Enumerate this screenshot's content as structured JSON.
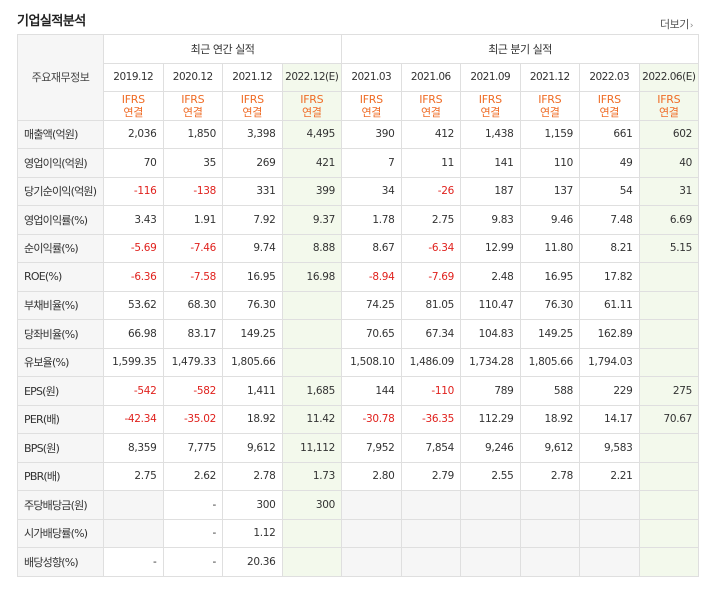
{
  "section_title": "기업실적분석",
  "more_link": "더보기",
  "more_arrow": "›",
  "corner_label": "주요재무정보",
  "group_annual": "최근 연간 실적",
  "group_quarter": "최근 분기 실적",
  "columns": [
    {
      "period": "2019.12",
      "ifrs1": "IFRS",
      "ifrs2": "연결",
      "estimate": false
    },
    {
      "period": "2020.12",
      "ifrs1": "IFRS",
      "ifrs2": "연결",
      "estimate": false
    },
    {
      "period": "2021.12",
      "ifrs1": "IFRS",
      "ifrs2": "연결",
      "estimate": false
    },
    {
      "period": "2022.12(E)",
      "ifrs1": "IFRS",
      "ifrs2": "연결",
      "estimate": true
    },
    {
      "period": "2021.03",
      "ifrs1": "IFRS",
      "ifrs2": "연결",
      "estimate": false
    },
    {
      "period": "2021.06",
      "ifrs1": "IFRS",
      "ifrs2": "연결",
      "estimate": false
    },
    {
      "period": "2021.09",
      "ifrs1": "IFRS",
      "ifrs2": "연결",
      "estimate": false
    },
    {
      "period": "2021.12",
      "ifrs1": "IFRS",
      "ifrs2": "연결",
      "estimate": false
    },
    {
      "period": "2022.03",
      "ifrs1": "IFRS",
      "ifrs2": "연결",
      "estimate": false
    },
    {
      "period": "2022.06(E)",
      "ifrs1": "IFRS",
      "ifrs2": "연결",
      "estimate": true
    }
  ],
  "rows": [
    {
      "label": "매출액(억원)",
      "values": [
        "2,036",
        "1,850",
        "3,398",
        "4,495",
        "390",
        "412",
        "1,438",
        "1,159",
        "661",
        "602"
      ]
    },
    {
      "label": "영업이익(억원)",
      "values": [
        "70",
        "35",
        "269",
        "421",
        "7",
        "11",
        "141",
        "110",
        "49",
        "40"
      ]
    },
    {
      "label": "당기순이익(억원)",
      "values": [
        "-116",
        "-138",
        "331",
        "399",
        "34",
        "-26",
        "187",
        "137",
        "54",
        "31"
      ]
    },
    {
      "label": "영업이익률(%)",
      "group_start": true,
      "values": [
        "3.43",
        "1.91",
        "7.92",
        "9.37",
        "1.78",
        "2.75",
        "9.83",
        "9.46",
        "7.48",
        "6.69"
      ]
    },
    {
      "label": "순이익률(%)",
      "values": [
        "-5.69",
        "-7.46",
        "9.74",
        "8.88",
        "8.67",
        "-6.34",
        "12.99",
        "11.80",
        "8.21",
        "5.15"
      ]
    },
    {
      "label": "ROE(%)",
      "values": [
        "-6.36",
        "-7.58",
        "16.95",
        "16.98",
        "-8.94",
        "-7.69",
        "2.48",
        "16.95",
        "17.82",
        ""
      ]
    },
    {
      "label": "부채비율(%)",
      "group_start": true,
      "values": [
        "53.62",
        "68.30",
        "76.30",
        "",
        "74.25",
        "81.05",
        "110.47",
        "76.30",
        "61.11",
        ""
      ]
    },
    {
      "label": "당좌비율(%)",
      "values": [
        "66.98",
        "83.17",
        "149.25",
        "",
        "70.65",
        "67.34",
        "104.83",
        "149.25",
        "162.89",
        ""
      ]
    },
    {
      "label": "유보율(%)",
      "values": [
        "1,599.35",
        "1,479.33",
        "1,805.66",
        "",
        "1,508.10",
        "1,486.09",
        "1,734.28",
        "1,805.66",
        "1,794.03",
        ""
      ]
    },
    {
      "label": "EPS(원)",
      "group_start": true,
      "values": [
        "-542",
        "-582",
        "1,411",
        "1,685",
        "144",
        "-110",
        "789",
        "588",
        "229",
        "275"
      ]
    },
    {
      "label": "PER(배)",
      "values": [
        "-42.34",
        "-35.02",
        "18.92",
        "11.42",
        "-30.78",
        "-36.35",
        "112.29",
        "18.92",
        "14.17",
        "70.67"
      ]
    },
    {
      "label": "BPS(원)",
      "values": [
        "8,359",
        "7,775",
        "9,612",
        "11,112",
        "7,952",
        "7,854",
        "9,246",
        "9,612",
        "9,583",
        ""
      ]
    },
    {
      "label": "PBR(배)",
      "values": [
        "2.75",
        "2.62",
        "2.78",
        "1.73",
        "2.80",
        "2.79",
        "2.55",
        "2.78",
        "2.21",
        ""
      ]
    },
    {
      "label": "주당배당금(원)",
      "group_start": true,
      "values": [
        "",
        "-",
        "300",
        "300",
        "",
        "",
        "",
        "",
        "",
        ""
      ]
    },
    {
      "label": "시가배당률(%)",
      "values": [
        "",
        "-",
        "1.12",
        "",
        "",
        "",
        "",
        "",
        "",
        ""
      ]
    },
    {
      "label": "배당성향(%)",
      "values": [
        "-",
        "-",
        "20.36",
        "",
        "",
        "",
        "",
        "",
        "",
        ""
      ]
    }
  ]
}
